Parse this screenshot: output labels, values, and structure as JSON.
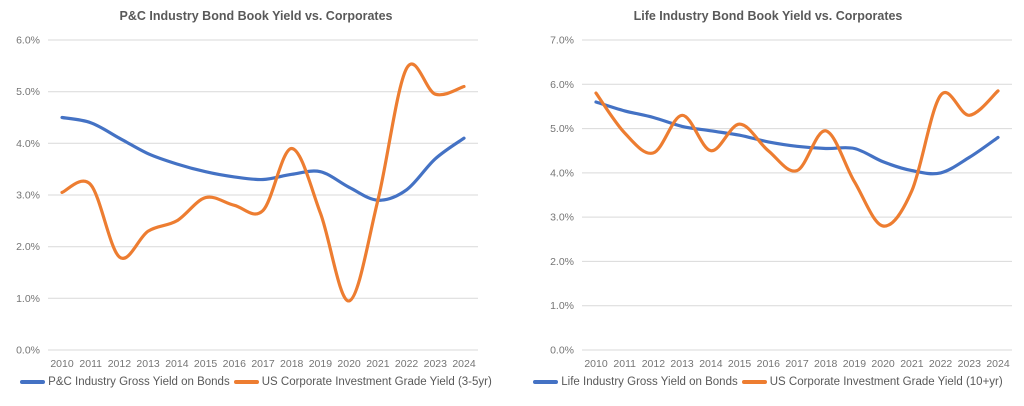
{
  "chart_data": [
    {
      "type": "line",
      "title": "P&C Industry Bond Book Yield vs. Corporates",
      "xlabel": "",
      "ylabel": "",
      "categories": [
        "2010",
        "2011",
        "2012",
        "2013",
        "2014",
        "2015",
        "2016",
        "2017",
        "2018",
        "2019",
        "2020",
        "2021",
        "2022",
        "2023",
        "2024"
      ],
      "series": [
        {
          "name": "P&C Industry Gross Yield on Bonds",
          "color": "#4472C4",
          "values": [
            4.5,
            4.4,
            4.1,
            3.8,
            3.6,
            3.45,
            3.35,
            3.3,
            3.4,
            3.45,
            3.15,
            2.9,
            3.1,
            3.7,
            4.1
          ]
        },
        {
          "name": "US Corporate Investment Grade Yield (3-5yr)",
          "color": "#ED7D31",
          "values": [
            3.05,
            3.2,
            1.8,
            2.3,
            2.5,
            2.95,
            2.8,
            2.7,
            3.9,
            2.65,
            0.95,
            2.9,
            5.45,
            4.95,
            5.1
          ]
        }
      ],
      "ylim": [
        0,
        6
      ],
      "ytick_step": 1,
      "ytick_labels": [
        "0.0%",
        "1.0%",
        "2.0%",
        "3.0%",
        "4.0%",
        "5.0%",
        "6.0%"
      ],
      "grid": "horizontal",
      "legend_position": "bottom",
      "line_style": "smooth"
    },
    {
      "type": "line",
      "title": "Life Industry Bond Book Yield vs. Corporates",
      "xlabel": "",
      "ylabel": "",
      "categories": [
        "2010",
        "2011",
        "2012",
        "2013",
        "2014",
        "2015",
        "2016",
        "2017",
        "2018",
        "2019",
        "2020",
        "2021",
        "2022",
        "2023",
        "2024"
      ],
      "series": [
        {
          "name": "Life Industry Gross Yield on Bonds",
          "color": "#4472C4",
          "values": [
            5.6,
            5.4,
            5.25,
            5.05,
            4.95,
            4.85,
            4.7,
            4.6,
            4.55,
            4.55,
            4.25,
            4.05,
            4.0,
            4.35,
            4.8
          ]
        },
        {
          "name": "US Corporate Investment Grade Yield (10+yr)",
          "color": "#ED7D31",
          "values": [
            5.8,
            4.9,
            4.45,
            5.3,
            4.5,
            5.1,
            4.5,
            4.05,
            4.95,
            3.8,
            2.8,
            3.6,
            5.75,
            5.3,
            5.85
          ]
        }
      ],
      "ylim": [
        0,
        7
      ],
      "ytick_step": 1,
      "ytick_labels": [
        "0.0%",
        "1.0%",
        "2.0%",
        "3.0%",
        "4.0%",
        "5.0%",
        "6.0%",
        "7.0%"
      ],
      "grid": "horizontal",
      "legend_position": "bottom",
      "line_style": "smooth"
    }
  ],
  "colors": {
    "series_blue": "#4472C4",
    "series_orange": "#ED7D31",
    "gridline": "#D9D9D9",
    "axis_text": "#757575",
    "title_text": "#595959"
  }
}
